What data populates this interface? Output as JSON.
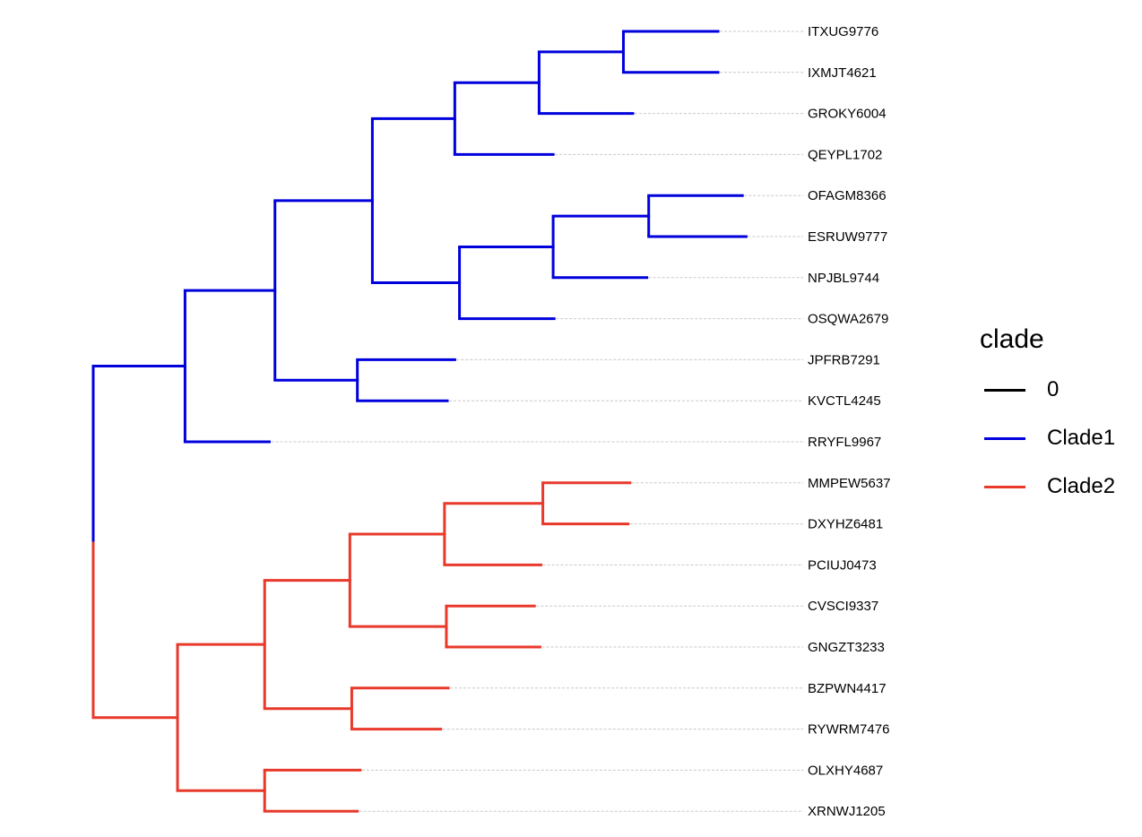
{
  "colors": {
    "0": "#000000",
    "Clade1": "#0000dd",
    "Clade2": "#e8392b",
    "guide": "#c8c8c8"
  },
  "tips": [
    "ITXUG9776",
    "IXMJT4621",
    "GROKY6004",
    "QEYPL1702",
    "OFAGM8366",
    "ESRUW9777",
    "NPJBL9744",
    "OSQWA2679",
    "JPFRB7291",
    "KVCTL4245",
    "RRYFL9967",
    "MMPEW5637",
    "DXYHZ6481",
    "PCIUJ0473",
    "CVSCI9337",
    "GNGZT3233",
    "BZPWN4417",
    "RYWRM7476",
    "OLXHY4687",
    "XRNWJ1205"
  ],
  "tree": {
    "children": [
      {
        "clade": "Clade1",
        "length": 0.98,
        "children": [
          {
            "length": 0.96,
            "children": [
              {
                "length": 1.04,
                "children": [
                  {
                    "length": 0.88,
                    "children": [
                      {
                        "length": 0.9,
                        "children": [
                          {
                            "length": 0.9,
                            "children": [
                              {
                                "tip": 0,
                                "length": 1.01
                              },
                              {
                                "tip": 1,
                                "length": 1.01
                              }
                            ]
                          },
                          {
                            "tip": 2,
                            "length": 1.0
                          }
                        ]
                      },
                      {
                        "tip": 3,
                        "length": 1.05
                      }
                    ]
                  },
                  {
                    "length": 0.93,
                    "children": [
                      {
                        "length": 1.0,
                        "children": [
                          {
                            "length": 1.02,
                            "children": [
                              {
                                "tip": 4,
                                "length": 1.0
                              },
                              {
                                "tip": 5,
                                "length": 1.04
                              }
                            ]
                          },
                          {
                            "tip": 6,
                            "length": 1.0
                          }
                        ]
                      },
                      {
                        "tip": 7,
                        "length": 1.01
                      }
                    ]
                  }
                ]
              },
              {
                "length": 0.88,
                "children": [
                  {
                    "tip": 8,
                    "length": 1.04
                  },
                  {
                    "tip": 9,
                    "length": 0.96
                  }
                ]
              }
            ]
          },
          {
            "tip": 10,
            "length": 0.9
          }
        ]
      },
      {
        "clade": "Clade2",
        "length": 0.9,
        "children": [
          {
            "length": 0.93,
            "children": [
              {
                "length": 0.91,
                "children": [
                  {
                    "length": 1.01,
                    "children": [
                      {
                        "length": 1.05,
                        "children": [
                          {
                            "tip": 11,
                            "length": 0.93
                          },
                          {
                            "tip": 12,
                            "length": 0.91
                          }
                        ]
                      },
                      {
                        "tip": 13,
                        "length": 1.03
                      }
                    ]
                  },
                  {
                    "length": 1.03,
                    "children": [
                      {
                        "tip": 14,
                        "length": 0.94
                      },
                      {
                        "tip": 15,
                        "length": 1.0
                      }
                    ]
                  }
                ]
              },
              {
                "length": 0.93,
                "children": [
                  {
                    "tip": 16,
                    "length": 1.03
                  },
                  {
                    "tip": 17,
                    "length": 0.95
                  }
                ]
              }
            ]
          },
          {
            "length": 0.93,
            "children": [
              {
                "tip": 18,
                "length": 1.02
              },
              {
                "tip": 19,
                "length": 0.99
              }
            ]
          }
        ]
      }
    ]
  },
  "legend": {
    "title": "clade",
    "items": [
      {
        "label": "0",
        "color": "#000000"
      },
      {
        "label": "Clade1",
        "color": "#0000dd"
      },
      {
        "label": "Clade2",
        "color": "#e8392b"
      }
    ]
  }
}
